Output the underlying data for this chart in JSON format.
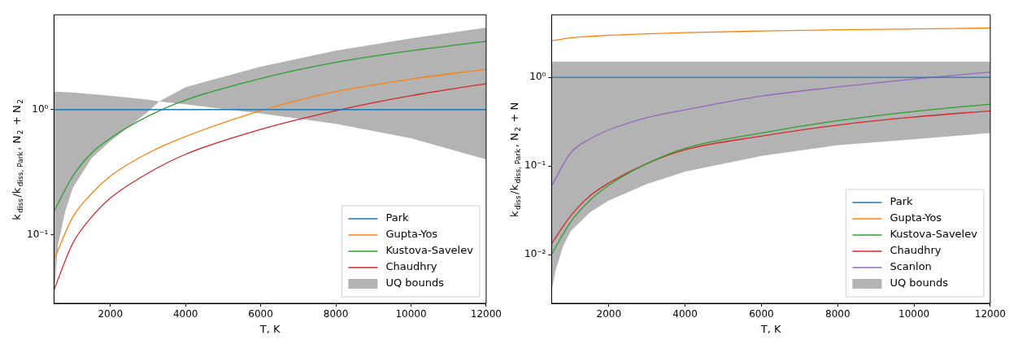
{
  "chart_data": [
    {
      "type": "line",
      "xlabel": "T, K",
      "ylabel": "k$_{diss}$/k$_{diss, Park}$, N$_{2}$ + N$_{2}$",
      "log": "y",
      "grid": false,
      "legend": "bottom right",
      "marker": "none",
      "line_style": "solid",
      "xlim": [
        500,
        12000
      ],
      "ylim": [
        0.0285,
        5.7
      ],
      "xticks": [
        2000,
        4000,
        6000,
        8000,
        10000,
        12000
      ],
      "yticks": [
        {
          "value": 0.1,
          "label": "10⁻¹"
        },
        {
          "value": 1,
          "label": "10⁰"
        }
      ],
      "x": [
        500,
        1000,
        1500,
        2000,
        3000,
        4000,
        6000,
        8000,
        10000,
        12000
      ],
      "series": [
        {
          "name": "UQ bounds",
          "type": "area",
          "color": "#b3b3b3",
          "x": [
            500,
            600,
            800,
            1000,
            1500,
            2000,
            3000,
            3300,
            4000,
            6000,
            8000,
            10000,
            12000
          ],
          "lower": [
            0.03,
            0.082,
            0.155,
            0.238,
            0.41,
            0.56,
            0.96,
            1.16,
            1.1,
            0.93,
            0.77,
            0.59,
            0.4
          ],
          "upper": [
            1.39,
            1.39,
            1.38,
            1.37,
            1.33,
            1.29,
            1.2,
            1.16,
            1.51,
            2.2,
            2.95,
            3.7,
            4.5
          ],
          "values": [
            null,
            null,
            null,
            null,
            null,
            null,
            null,
            null,
            null,
            null,
            null,
            null,
            null
          ]
        },
        {
          "name": "Park",
          "color": "#1f77b4",
          "values": [
            1,
            1,
            1,
            1,
            1,
            1,
            1,
            1,
            1,
            1
          ]
        },
        {
          "name": "Gupta-Yos",
          "color": "#ff7f0e",
          "values": [
            0.064,
            0.139,
            0.214,
            0.295,
            0.45,
            0.61,
            0.98,
            1.39,
            1.75,
            2.1
          ]
        },
        {
          "name": "Kustova-Savelev",
          "color": "#2ca02c",
          "values": [
            0.155,
            0.295,
            0.45,
            0.59,
            0.885,
            1.19,
            1.77,
            2.38,
            2.95,
            3.5
          ]
        },
        {
          "name": "Chaudhry",
          "color": "#d62728",
          "values": [
            0.0365,
            0.086,
            0.139,
            0.197,
            0.311,
            0.44,
            0.695,
            0.98,
            1.29,
            1.61
          ]
        }
      ]
    },
    {
      "type": "line",
      "xlabel": "T, K",
      "ylabel": "k$_{diss}$/k$_{diss, Park}$, N$_{2}$ + N",
      "log": "y",
      "grid": false,
      "legend": "bottom right",
      "marker": "none",
      "line_style": "solid",
      "xlim": [
        500,
        12000
      ],
      "ylim": [
        0.00284,
        5.08
      ],
      "xticks": [
        2000,
        4000,
        6000,
        8000,
        10000,
        12000
      ],
      "yticks": [
        {
          "value": 0.01,
          "label": "10⁻²"
        },
        {
          "value": 0.1,
          "label": "10⁻¹"
        },
        {
          "value": 1,
          "label": "10⁰"
        }
      ],
      "x": [
        500,
        1000,
        1500,
        2000,
        3000,
        4000,
        6000,
        8000,
        10000,
        12000
      ],
      "series": [
        {
          "name": "UQ bounds",
          "type": "area",
          "color": "#b3b3b3",
          "x": [
            500,
            600,
            800,
            1000,
            1500,
            2000,
            3000,
            4000,
            6000,
            8000,
            10000,
            12000
          ],
          "lower": [
            0.0039,
            0.0066,
            0.0125,
            0.0185,
            0.03,
            0.041,
            0.063,
            0.087,
            0.13,
            0.172,
            0.201,
            0.236
          ],
          "upper": [
            1.51,
            1.51,
            1.51,
            1.51,
            1.51,
            1.51,
            1.51,
            1.51,
            1.51,
            1.51,
            1.51,
            1.51
          ],
          "values": [
            null,
            null,
            null,
            null,
            null,
            null,
            null,
            null,
            null,
            null,
            null,
            null
          ]
        },
        {
          "name": "Park",
          "color": "#1f77b4",
          "values": [
            1,
            1,
            1,
            1,
            1,
            1,
            1,
            1,
            1,
            1
          ]
        },
        {
          "name": "Gupta-Yos",
          "color": "#ff7f0e",
          "values": [
            2.58,
            2.8,
            2.9,
            2.98,
            3.1,
            3.2,
            3.33,
            3.44,
            3.52,
            3.6
          ]
        },
        {
          "name": "Kustova-Savelev",
          "color": "#2ca02c",
          "values": [
            0.0102,
            0.0235,
            0.041,
            0.061,
            0.107,
            0.159,
            0.236,
            0.325,
            0.413,
            0.5
          ]
        },
        {
          "name": "Chaudhry",
          "color": "#d62728",
          "values": [
            0.0134,
            0.0275,
            0.046,
            0.0645,
            0.107,
            0.153,
            0.218,
            0.29,
            0.358,
            0.42
          ]
        },
        {
          "name": "Scanlon",
          "color": "#9467bd",
          "values": [
            0.06,
            0.141,
            0.202,
            0.256,
            0.352,
            0.43,
            0.615,
            0.78,
            0.96,
            1.15
          ]
        }
      ]
    }
  ]
}
